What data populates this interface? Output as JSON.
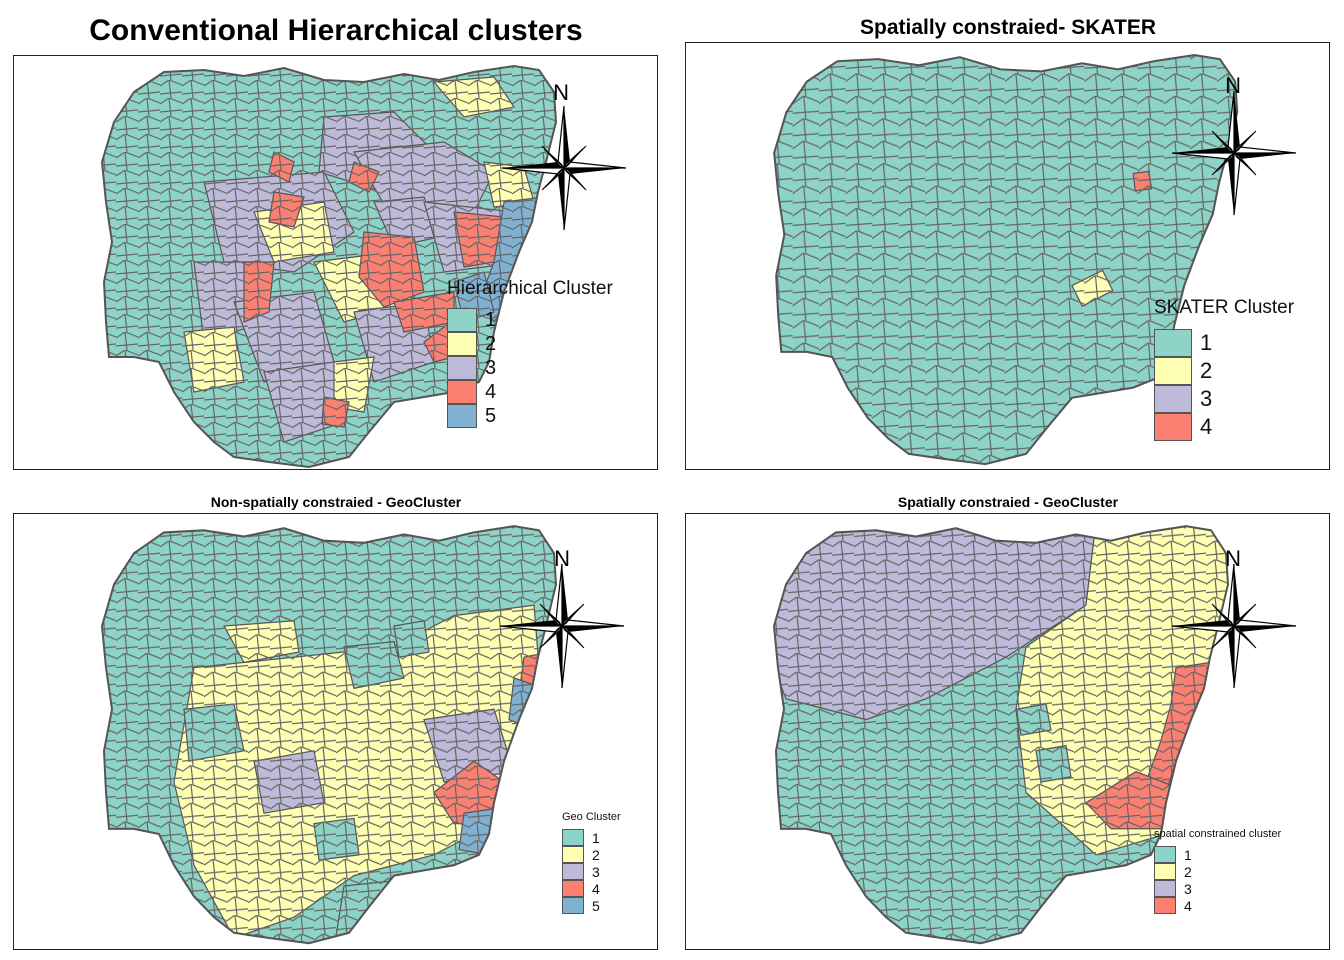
{
  "colors": {
    "c1": "#8dd3c7",
    "c2": "#ffffb3",
    "c3": "#bebada",
    "c4": "#fb8072",
    "c5": "#80b1d3",
    "border": "#555555"
  },
  "north_label": "N",
  "panels": [
    {
      "title": "Conventional Hierarchical clusters",
      "legend": {
        "title": "Hierarchical Cluster",
        "items": [
          "1",
          "2",
          "3",
          "4",
          "5"
        ]
      }
    },
    {
      "title": "Spatially constraied- SKATER",
      "legend": {
        "title": "SKATER Cluster",
        "items": [
          "1",
          "2",
          "3",
          "4"
        ]
      }
    },
    {
      "title": "Non-spatially constraied - GeoCluster",
      "legend": {
        "title": "Geo Cluster",
        "items": [
          "1",
          "2",
          "3",
          "4",
          "5"
        ]
      }
    },
    {
      "title": "Spatially constraied - GeoCluster",
      "legend": {
        "title": "spatial constrained cluster",
        "items": [
          "1",
          "2",
          "3",
          "4"
        ]
      }
    }
  ]
}
